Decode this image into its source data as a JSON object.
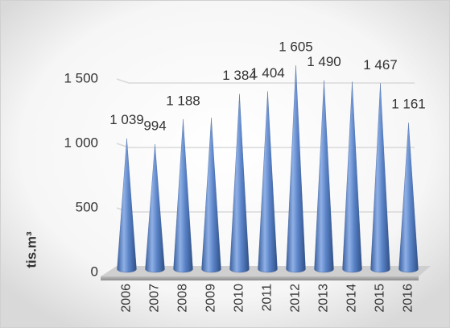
{
  "chart_data": {
    "type": "cone",
    "y_axis_label": "tis.m³",
    "categories": [
      "2006",
      "2007",
      "2008",
      "2009",
      "2010",
      "2011",
      "2012",
      "2013",
      "2014",
      "2015",
      "2016"
    ],
    "values": [
      1039,
      994,
      1188,
      1200,
      1384,
      1404,
      1605,
      1490,
      1480,
      1467,
      1161
    ],
    "value_labels": [
      "1 039",
      "994",
      "1 188",
      null,
      "1 384",
      "1 404",
      "1 605",
      "1 490",
      null,
      "1 467",
      "1 161"
    ],
    "color": "#5b84c8",
    "ylim": [
      0,
      1800
    ],
    "yticks": [
      0,
      500,
      {
        "value": 1000,
        "label": "1 000"
      },
      {
        "value": 1500,
        "label": "1 500"
      }
    ],
    "grid": true
  }
}
